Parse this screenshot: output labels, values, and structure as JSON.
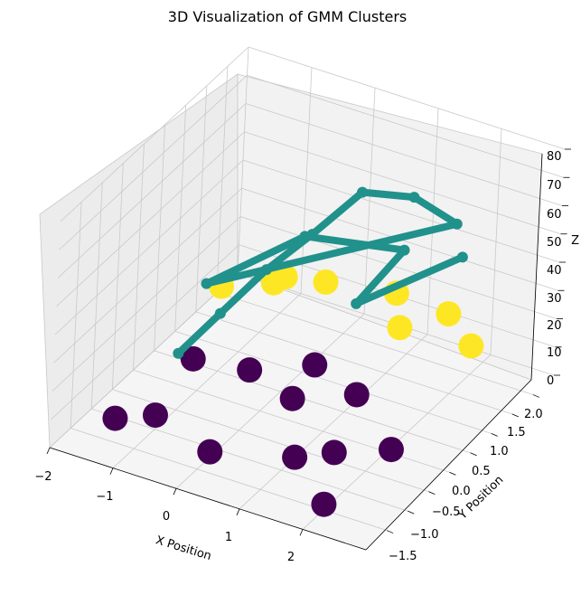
{
  "chart_data": {
    "type": "scatter",
    "projection": "3d",
    "title": "3D Visualization of GMM Clusters",
    "xlabel": "X Position",
    "ylabel": "Y Position",
    "zlabel": "Z",
    "xlim": [
      -2,
      3
    ],
    "ylim": [
      -2,
      2.5
    ],
    "zlim": [
      0,
      80
    ],
    "x_ticks": [
      "−2",
      "−1",
      "0",
      "1",
      "2"
    ],
    "y_ticks": [
      "−1.5",
      "−1.0",
      "−0.5",
      "0.0",
      "0.5",
      "1.0",
      "1.5",
      "2.0"
    ],
    "z_ticks": [
      "0",
      "10",
      "20",
      "30",
      "40",
      "50",
      "60",
      "70",
      "80"
    ],
    "grid": true,
    "colormap": "viridis",
    "series": [
      {
        "cluster": 0,
        "color": "#440154",
        "z_range": [
          0,
          10
        ],
        "points": [
          [
            -1.5,
            -1.2,
            3
          ],
          [
            -1,
            -1,
            5
          ],
          [
            0,
            -1.2,
            2
          ],
          [
            1.2,
            -1,
            6
          ],
          [
            2,
            -1.5,
            2
          ],
          [
            0.5,
            0,
            8
          ],
          [
            -0.5,
            0.5,
            4
          ],
          [
            1.5,
            -0.5,
            3
          ],
          [
            -1.2,
            0.2,
            7
          ],
          [
            2.2,
            -0.2,
            5
          ],
          [
            0.2,
            1,
            4
          ],
          [
            1,
            0.8,
            2
          ]
        ]
      },
      {
        "cluster": 1,
        "color": "#21918c",
        "z_range": [
          15,
          80
        ],
        "points": [
          [
            -1,
            -0.5,
            20
          ],
          [
            -0.5,
            -0.3,
            35
          ],
          [
            0,
            0,
            50
          ],
          [
            0.5,
            0.3,
            62
          ],
          [
            1,
            0.7,
            75
          ],
          [
            1.5,
            1.2,
            70
          ],
          [
            2,
            1.5,
            60
          ],
          [
            -0.8,
            -0.2,
            42
          ],
          [
            0.2,
            0.6,
            55
          ],
          [
            1.2,
            1.5,
            45
          ],
          [
            0.8,
            1,
            30
          ],
          [
            1.8,
            2,
            40
          ]
        ]
      },
      {
        "cluster": 2,
        "color": "#fde725",
        "z_range": [
          5,
          40
        ],
        "points": [
          [
            -1,
            0.5,
            30
          ],
          [
            -0.5,
            1,
            28
          ],
          [
            0,
            1.5,
            25
          ],
          [
            0.8,
            2,
            20
          ],
          [
            1.5,
            2.2,
            15
          ],
          [
            2,
            2,
            10
          ],
          [
            -0.2,
            0.8,
            35
          ],
          [
            1,
            1.8,
            12
          ]
        ]
      }
    ]
  }
}
